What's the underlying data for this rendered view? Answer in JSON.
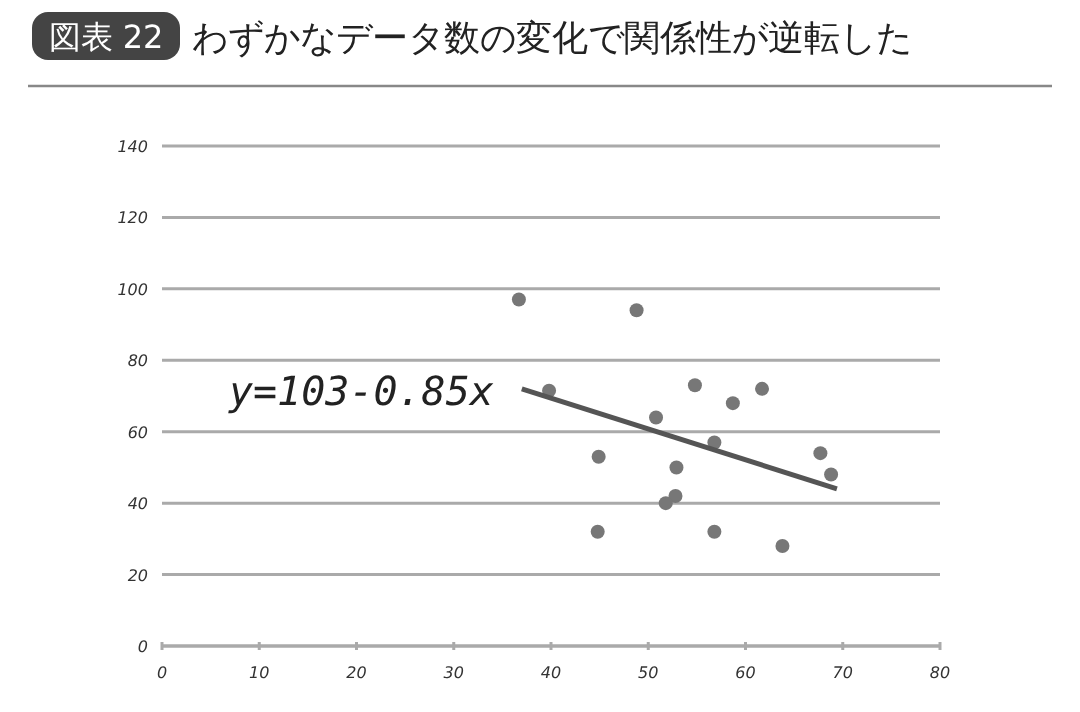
{
  "chart_data": {
    "type": "scatter",
    "title": "わずかなデータ数の変化で関係性が逆転した",
    "annotations": [
      "図表 22"
    ],
    "xlim": [
      0,
      80
    ],
    "ylim": [
      0,
      140
    ],
    "xticks": [
      0,
      10,
      20,
      30,
      40,
      50,
      60,
      70,
      80
    ],
    "yticks": [
      0,
      20,
      40,
      60,
      80,
      100,
      120,
      140
    ],
    "grid": "y",
    "series": [
      {
        "color": "#777777",
        "marker": "circle",
        "x": [
          36.7,
          48.8,
          39.8,
          54.8,
          61.7,
          58.7,
          50.8,
          56.8,
          67.7,
          68.8,
          44.9,
          52.9,
          52.8,
          51.8,
          44.8,
          56.8,
          63.8
        ],
        "values": [
          97,
          94,
          71.5,
          73,
          72,
          68,
          64,
          57,
          54,
          48,
          53,
          50,
          42,
          40,
          32,
          32,
          28
        ]
      },
      {
        "type": "line",
        "name": "y=103-0.85x",
        "color": "#555555",
        "x": [
          37,
          69.4
        ],
        "values": [
          72,
          44
        ],
        "marker": "none"
      }
    ]
  }
}
